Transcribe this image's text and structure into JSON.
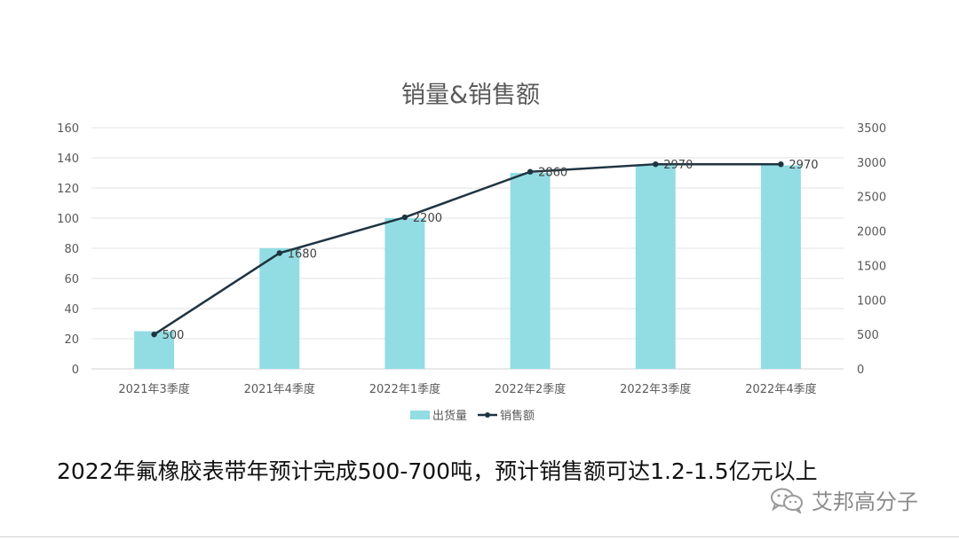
{
  "chart_data": {
    "type": "bar+line",
    "title": "销量&销售额",
    "categories": [
      "2021年3季度",
      "2021年4季度",
      "2022年1季度",
      "2022年2季度",
      "2022年3季度",
      "2022年4季度"
    ],
    "series": [
      {
        "name": "出货量",
        "type": "bar",
        "axis": "left",
        "values": [
          25,
          80,
          100,
          130,
          135,
          135
        ],
        "color": "#92dde3"
      },
      {
        "name": "销售额",
        "type": "line",
        "axis": "right",
        "values": [
          500,
          1680,
          2200,
          2860,
          2970,
          2970
        ],
        "color": "#1f3441",
        "labels": [
          "500",
          "1680",
          "2200",
          "2860",
          "2970",
          "2970"
        ]
      }
    ],
    "y_left": {
      "min": 0,
      "max": 160,
      "ticks": [
        "0",
        "20",
        "40",
        "60",
        "80",
        "100",
        "120",
        "140",
        "160"
      ]
    },
    "y_right": {
      "min": 0,
      "max": 3500,
      "ticks": [
        "0",
        "500",
        "1000",
        "1500",
        "2000",
        "2500",
        "3000",
        "3500"
      ]
    },
    "grid": true,
    "legend": "bottom"
  },
  "caption": "2022年氟橡胶表带年预计完成500-700吨，预计销售额可达1.2-1.5亿元以上",
  "watermark": {
    "text": "艾邦高分子",
    "icon": "wechat-icon"
  }
}
